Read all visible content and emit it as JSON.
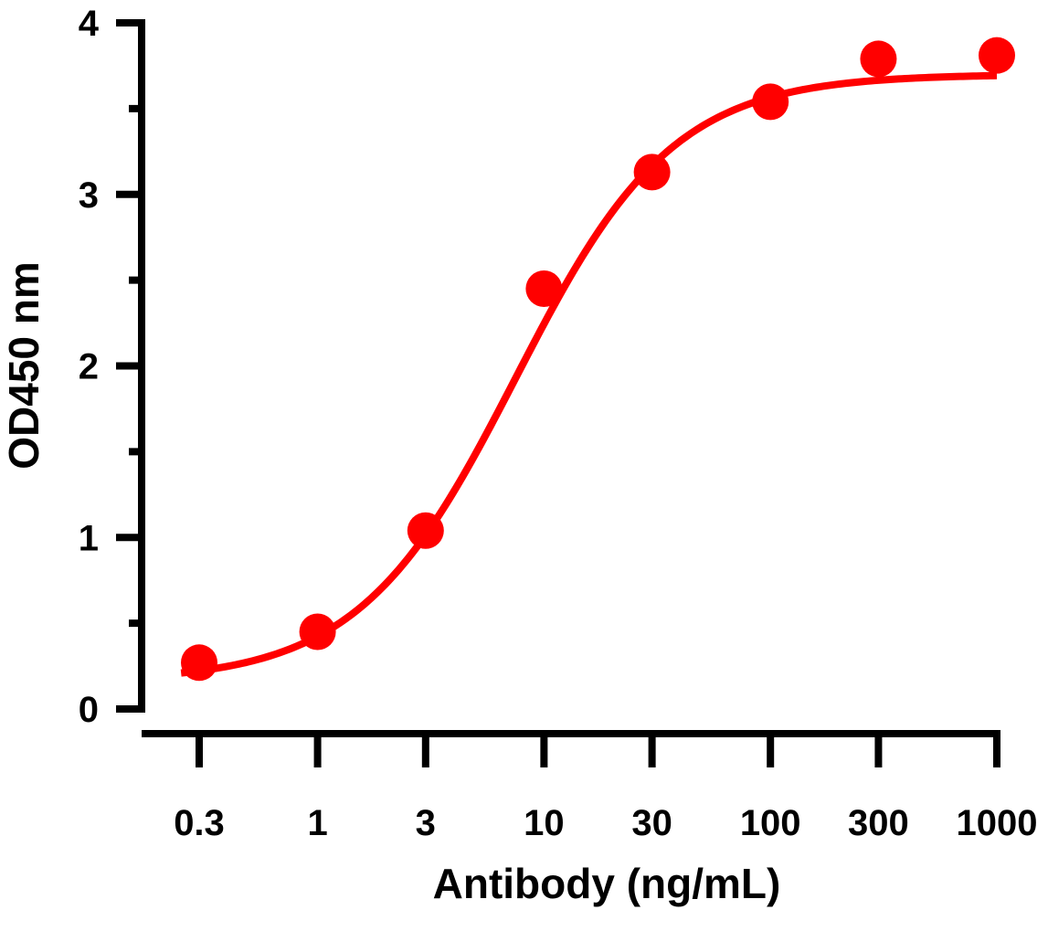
{
  "chart_data": {
    "type": "scatter",
    "xlabel": "Antibody (ng/mL)",
    "ylabel": "OD450 nm",
    "x_scale": "log",
    "x_ticks": [
      0.3,
      1,
      3,
      10,
      30,
      100,
      300,
      1000
    ],
    "x_tick_labels": [
      "0.3",
      "1",
      "3",
      "10",
      "30",
      "100",
      "300",
      "1000"
    ],
    "ylim": [
      0,
      4
    ],
    "y_ticks": [
      0,
      1,
      2,
      3,
      4
    ],
    "y_tick_labels": [
      "0",
      "1",
      "2",
      "3",
      "4"
    ],
    "grid": false,
    "legend": "none",
    "series": [
      {
        "points": [
          {
            "x": 0.3,
            "y": 0.27
          },
          {
            "x": 1,
            "y": 0.45
          },
          {
            "x": 3,
            "y": 1.04
          },
          {
            "x": 10,
            "y": 2.45
          },
          {
            "x": 30,
            "y": 3.13
          },
          {
            "x": 100,
            "y": 3.54
          },
          {
            "x": 300,
            "y": 3.79
          },
          {
            "x": 1000,
            "y": 3.81
          }
        ],
        "fit": {
          "type": "4PL",
          "bottom": 0.16,
          "top": 3.7,
          "ec50": 7.5,
          "hill": 1.25
        },
        "color": "#ff0000"
      }
    ]
  }
}
